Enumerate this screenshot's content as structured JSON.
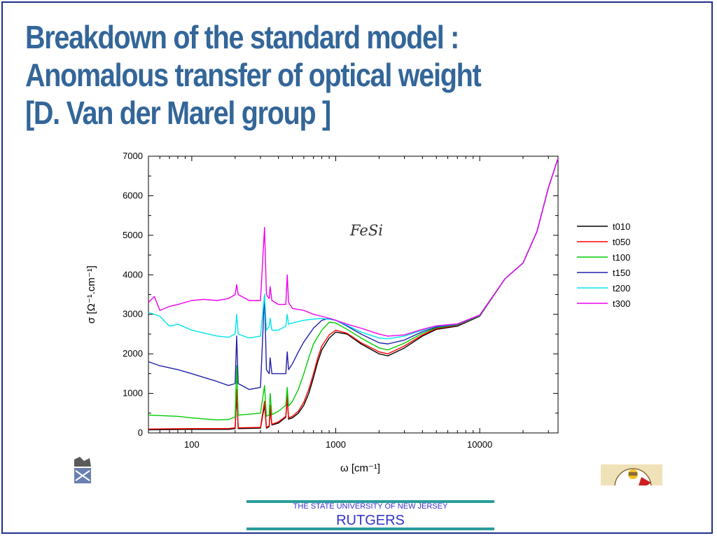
{
  "slide": {
    "title_lines": [
      "Breakdown of the standard model :",
      "Anomalous transfer of optical weight",
      "[D. Van der Marel group ]"
    ]
  },
  "footer": {
    "university": "THE STATE UNIVERSITY OF NEW JERSEY",
    "name": "RUTGERS"
  },
  "chart_data": {
    "type": "line",
    "annotation": "FeSi",
    "xlabel": "ω [cm⁻¹]",
    "ylabel": "σ [Ω⁻¹.cm⁻¹]",
    "xscale": "log",
    "xlim": [
      50,
      35000
    ],
    "ylim": [
      0,
      7000
    ],
    "x_ticks": [
      100,
      1000,
      10000
    ],
    "x_tick_labels": [
      "100",
      "1000",
      "10000"
    ],
    "y_ticks": [
      0,
      1000,
      2000,
      3000,
      4000,
      5000,
      6000,
      7000
    ],
    "y_tick_labels": [
      "0",
      "1000",
      "2000",
      "3000",
      "4000",
      "5000",
      "6000",
      "7000"
    ],
    "grid": false,
    "legend_position": "right",
    "series": [
      {
        "name": "t010",
        "color": "#000000",
        "points": [
          [
            50,
            80
          ],
          [
            100,
            90
          ],
          [
            180,
            90
          ],
          [
            200,
            110
          ],
          [
            205,
            1000
          ],
          [
            210,
            110
          ],
          [
            300,
            120
          ],
          [
            320,
            700
          ],
          [
            330,
            120
          ],
          [
            345,
            160
          ],
          [
            350,
            600
          ],
          [
            360,
            200
          ],
          [
            400,
            250
          ],
          [
            450,
            400
          ],
          [
            460,
            900
          ],
          [
            470,
            350
          ],
          [
            500,
            380
          ],
          [
            550,
            500
          ],
          [
            600,
            700
          ],
          [
            650,
            1000
          ],
          [
            700,
            1400
          ],
          [
            750,
            1800
          ],
          [
            800,
            2100
          ],
          [
            900,
            2400
          ],
          [
            1000,
            2550
          ],
          [
            1200,
            2500
          ],
          [
            1500,
            2250
          ],
          [
            2000,
            2000
          ],
          [
            2300,
            1950
          ],
          [
            3000,
            2150
          ],
          [
            4000,
            2450
          ],
          [
            5000,
            2620
          ],
          [
            7000,
            2700
          ],
          [
            10000,
            2950
          ],
          [
            15000,
            3900
          ],
          [
            20000,
            4300
          ],
          [
            25000,
            5100
          ],
          [
            30000,
            6200
          ],
          [
            35000,
            6950
          ]
        ]
      },
      {
        "name": "t050",
        "color": "#ff0000",
        "points": [
          [
            50,
            100
          ],
          [
            100,
            110
          ],
          [
            180,
            110
          ],
          [
            200,
            130
          ],
          [
            205,
            1100
          ],
          [
            210,
            130
          ],
          [
            300,
            140
          ],
          [
            320,
            800
          ],
          [
            330,
            140
          ],
          [
            345,
            180
          ],
          [
            350,
            700
          ],
          [
            360,
            220
          ],
          [
            400,
            280
          ],
          [
            450,
            420
          ],
          [
            460,
            950
          ],
          [
            470,
            380
          ],
          [
            500,
            420
          ],
          [
            550,
            550
          ],
          [
            600,
            780
          ],
          [
            650,
            1100
          ],
          [
            700,
            1500
          ],
          [
            750,
            1900
          ],
          [
            800,
            2200
          ],
          [
            900,
            2480
          ],
          [
            1000,
            2600
          ],
          [
            1200,
            2520
          ],
          [
            1500,
            2280
          ],
          [
            2000,
            2050
          ],
          [
            2300,
            2000
          ],
          [
            3000,
            2200
          ],
          [
            4000,
            2480
          ],
          [
            5000,
            2640
          ],
          [
            7000,
            2720
          ],
          [
            10000,
            2960
          ],
          [
            15000,
            3900
          ],
          [
            20000,
            4300
          ],
          [
            25000,
            5100
          ],
          [
            30000,
            6200
          ],
          [
            35000,
            6950
          ]
        ]
      },
      {
        "name": "t100",
        "color": "#00cc00",
        "points": [
          [
            50,
            450
          ],
          [
            80,
            420
          ],
          [
            100,
            380
          ],
          [
            150,
            330
          ],
          [
            180,
            340
          ],
          [
            200,
            400
          ],
          [
            205,
            1700
          ],
          [
            210,
            450
          ],
          [
            300,
            500
          ],
          [
            320,
            1200
          ],
          [
            330,
            420
          ],
          [
            345,
            460
          ],
          [
            350,
            1000
          ],
          [
            360,
            460
          ],
          [
            400,
            550
          ],
          [
            450,
            700
          ],
          [
            460,
            1150
          ],
          [
            470,
            680
          ],
          [
            500,
            800
          ],
          [
            550,
            1100
          ],
          [
            600,
            1500
          ],
          [
            650,
            1900
          ],
          [
            700,
            2250
          ],
          [
            800,
            2600
          ],
          [
            900,
            2800
          ],
          [
            1000,
            2780
          ],
          [
            1200,
            2620
          ],
          [
            1500,
            2400
          ],
          [
            2000,
            2150
          ],
          [
            2300,
            2100
          ],
          [
            3000,
            2270
          ],
          [
            4000,
            2520
          ],
          [
            5000,
            2660
          ],
          [
            7000,
            2730
          ],
          [
            10000,
            2960
          ],
          [
            15000,
            3900
          ],
          [
            20000,
            4300
          ],
          [
            25000,
            5100
          ],
          [
            30000,
            6200
          ],
          [
            35000,
            6950
          ]
        ]
      },
      {
        "name": "t150",
        "color": "#2020aa",
        "points": [
          [
            50,
            1800
          ],
          [
            60,
            1700
          ],
          [
            80,
            1600
          ],
          [
            100,
            1500
          ],
          [
            150,
            1300
          ],
          [
            180,
            1200
          ],
          [
            200,
            1250
          ],
          [
            205,
            2450
          ],
          [
            210,
            1250
          ],
          [
            250,
            1100
          ],
          [
            300,
            1150
          ],
          [
            320,
            3500
          ],
          [
            330,
            1600
          ],
          [
            345,
            1500
          ],
          [
            350,
            1900
          ],
          [
            360,
            1500
          ],
          [
            400,
            1500
          ],
          [
            450,
            1500
          ],
          [
            460,
            2050
          ],
          [
            470,
            1600
          ],
          [
            500,
            1750
          ],
          [
            550,
            2050
          ],
          [
            600,
            2300
          ],
          [
            700,
            2650
          ],
          [
            800,
            2850
          ],
          [
            900,
            2900
          ],
          [
            1000,
            2850
          ],
          [
            1200,
            2700
          ],
          [
            1500,
            2500
          ],
          [
            2000,
            2280
          ],
          [
            2300,
            2250
          ],
          [
            3000,
            2350
          ],
          [
            4000,
            2560
          ],
          [
            5000,
            2680
          ],
          [
            7000,
            2740
          ],
          [
            10000,
            2970
          ],
          [
            15000,
            3900
          ],
          [
            20000,
            4300
          ],
          [
            25000,
            5100
          ],
          [
            30000,
            6200
          ],
          [
            35000,
            6950
          ]
        ]
      },
      {
        "name": "t200",
        "color": "#00e5ee",
        "points": [
          [
            50,
            3050
          ],
          [
            60,
            2950
          ],
          [
            70,
            2700
          ],
          [
            80,
            2750
          ],
          [
            100,
            2600
          ],
          [
            150,
            2450
          ],
          [
            180,
            2420
          ],
          [
            200,
            2500
          ],
          [
            205,
            3000
          ],
          [
            210,
            2500
          ],
          [
            250,
            2400
          ],
          [
            300,
            2450
          ],
          [
            320,
            3500
          ],
          [
            330,
            2600
          ],
          [
            345,
            2700
          ],
          [
            350,
            2900
          ],
          [
            360,
            2600
          ],
          [
            400,
            2600
          ],
          [
            450,
            2700
          ],
          [
            460,
            3000
          ],
          [
            470,
            2750
          ],
          [
            500,
            2780
          ],
          [
            600,
            2850
          ],
          [
            700,
            2880
          ],
          [
            800,
            2900
          ],
          [
            1000,
            2850
          ],
          [
            1200,
            2720
          ],
          [
            1500,
            2550
          ],
          [
            2000,
            2400
          ],
          [
            2300,
            2380
          ],
          [
            3000,
            2450
          ],
          [
            4000,
            2600
          ],
          [
            5000,
            2700
          ],
          [
            7000,
            2750
          ],
          [
            10000,
            2980
          ],
          [
            15000,
            3900
          ],
          [
            20000,
            4300
          ],
          [
            25000,
            5100
          ],
          [
            30000,
            6200
          ],
          [
            35000,
            6950
          ]
        ]
      },
      {
        "name": "t300",
        "color": "#ee00ee",
        "points": [
          [
            50,
            3300
          ],
          [
            55,
            3450
          ],
          [
            60,
            3100
          ],
          [
            70,
            3200
          ],
          [
            80,
            3250
          ],
          [
            100,
            3350
          ],
          [
            120,
            3380
          ],
          [
            150,
            3350
          ],
          [
            180,
            3400
          ],
          [
            200,
            3500
          ],
          [
            205,
            3750
          ],
          [
            210,
            3500
          ],
          [
            250,
            3350
          ],
          [
            300,
            3350
          ],
          [
            320,
            5200
          ],
          [
            330,
            3500
          ],
          [
            345,
            3400
          ],
          [
            350,
            3700
          ],
          [
            360,
            3350
          ],
          [
            400,
            3250
          ],
          [
            450,
            3250
          ],
          [
            460,
            4000
          ],
          [
            470,
            3300
          ],
          [
            500,
            3150
          ],
          [
            600,
            3100
          ],
          [
            700,
            3000
          ],
          [
            800,
            2950
          ],
          [
            1000,
            2850
          ],
          [
            1200,
            2750
          ],
          [
            1500,
            2650
          ],
          [
            2000,
            2500
          ],
          [
            2300,
            2450
          ],
          [
            3000,
            2480
          ],
          [
            4000,
            2620
          ],
          [
            5000,
            2710
          ],
          [
            7000,
            2760
          ],
          [
            10000,
            2980
          ],
          [
            15000,
            3900
          ],
          [
            20000,
            4300
          ],
          [
            25000,
            5100
          ],
          [
            30000,
            6200
          ],
          [
            35000,
            6950
          ]
        ]
      }
    ]
  }
}
